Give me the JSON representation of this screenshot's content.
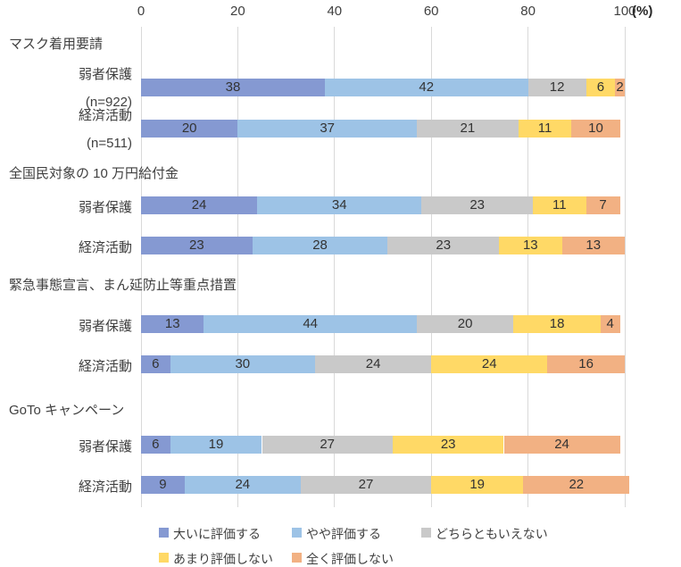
{
  "axis": {
    "tick_labels": [
      "0",
      "20",
      "40",
      "60",
      "80",
      "100"
    ],
    "unit_label": "(%)"
  },
  "colors": {
    "series": [
      "#8599D2",
      "#9DC3E6",
      "#C9C9C9",
      "#FFD966",
      "#F2B183"
    ],
    "gridline": "#D9D9D9",
    "text": "#404040"
  },
  "chart_data": {
    "type": "bar",
    "orientation": "horizontal",
    "stacked": true,
    "value_unit": "%",
    "xlim": [
      0,
      100
    ],
    "xticks": [
      0,
      20,
      40,
      60,
      80,
      100
    ],
    "grid": true,
    "legend_position": "bottom",
    "series_names": [
      "大いに評価する",
      "やや評価する",
      "どちらともいえない",
      "あまり評価しない",
      "全く評価しない"
    ],
    "groups": [
      {
        "title": "マスク着用要請",
        "rows": [
          {
            "label": "弱者保護",
            "sublabel": "(n=922)",
            "values": [
              38,
              42,
              12,
              6,
              2
            ]
          },
          {
            "label": "経済活動",
            "sublabel": "(n=511)",
            "values": [
              20,
              37,
              21,
              11,
              10
            ]
          }
        ]
      },
      {
        "title": "全国民対象の 10 万円給付金",
        "rows": [
          {
            "label": "弱者保護",
            "sublabel": "",
            "values": [
              24,
              34,
              23,
              11,
              7
            ]
          },
          {
            "label": "経済活動",
            "sublabel": "",
            "values": [
              23,
              28,
              23,
              13,
              13
            ]
          }
        ]
      },
      {
        "title": "緊急事態宣言、まん延防止等重点措置",
        "rows": [
          {
            "label": "弱者保護",
            "sublabel": "",
            "values": [
              13,
              44,
              20,
              18,
              4
            ]
          },
          {
            "label": "経済活動",
            "sublabel": "",
            "values": [
              6,
              30,
              24,
              24,
              16
            ]
          }
        ]
      },
      {
        "title": "GoTo キャンペーン",
        "rows": [
          {
            "label": "弱者保護",
            "sublabel": "",
            "values": [
              6,
              19,
              27,
              23,
              24
            ]
          },
          {
            "label": "経済活動",
            "sublabel": "",
            "values": [
              9,
              24,
              27,
              19,
              22
            ]
          }
        ]
      }
    ],
    "legend": [
      "大いに評価する",
      "やや評価する",
      "どちらともいえない",
      "あまり評価しない",
      "全く評価しない"
    ]
  }
}
